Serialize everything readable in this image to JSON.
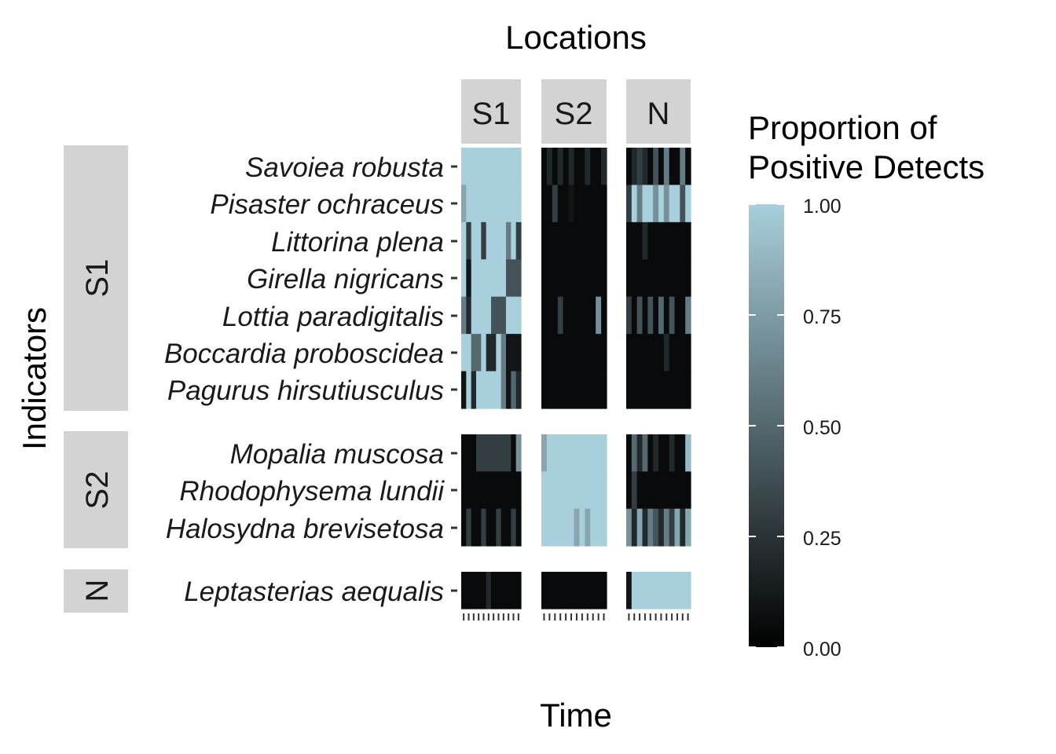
{
  "chart_data": {
    "type": "heatmap",
    "title": "Locations",
    "xlabel": "Time",
    "ylabel": "Indicators",
    "locations": [
      "S1",
      "S2",
      "N"
    ],
    "indicator_groups": [
      "S1",
      "S2",
      "N"
    ],
    "indicators": [
      {
        "group": "S1",
        "label": "Savoiea robusta"
      },
      {
        "group": "S1",
        "label": "Pisaster ochraceus"
      },
      {
        "group": "S1",
        "label": "Littorina plena"
      },
      {
        "group": "S1",
        "label": "Girella nigricans"
      },
      {
        "group": "S1",
        "label": "Lottia paradigitalis"
      },
      {
        "group": "S1",
        "label": "Boccardia proboscidea"
      },
      {
        "group": "S1",
        "label": "Pagurus hirsutiusculus"
      },
      {
        "group": "S2",
        "label": "Mopalia muscosa"
      },
      {
        "group": "S2",
        "label": "Rhodophysema lundii"
      },
      {
        "group": "S2",
        "label": "Halosydna brevisetosa"
      },
      {
        "group": "N",
        "label": "Leptasterias aequalis"
      }
    ],
    "time_points": 12,
    "values": {
      "S1": [
        [
          1,
          1,
          1,
          1,
          1,
          1,
          1,
          1,
          1,
          1,
          1,
          1
        ],
        [
          0.8,
          1,
          1,
          1,
          1,
          1,
          1,
          1,
          1,
          1,
          1,
          1
        ],
        [
          1,
          0.3,
          1,
          1,
          0.3,
          1,
          1,
          1,
          1,
          0.6,
          1,
          0.3
        ],
        [
          1,
          0.1,
          1,
          1,
          1,
          1,
          1,
          1,
          1,
          0.4,
          0.4,
          0.4
        ],
        [
          0.6,
          0.2,
          1,
          1,
          1,
          1,
          0.4,
          0.4,
          0.4,
          1,
          1,
          1
        ],
        [
          1,
          1,
          0.5,
          0.5,
          1,
          0.2,
          0.2,
          1,
          0.6,
          0.1,
          0.1,
          0.1
        ],
        [
          0.1,
          1,
          0.2,
          1,
          1,
          1,
          1,
          1,
          0.6,
          0.1,
          0.5,
          0.2
        ],
        [
          0.05,
          0.05,
          0.05,
          0.3,
          0.3,
          0.3,
          0.3,
          0.3,
          0.3,
          0.3,
          0.05,
          0.7
        ],
        [
          0.05,
          0.05,
          0.05,
          0.05,
          0.05,
          0.05,
          0.05,
          0.05,
          0.05,
          0.05,
          0.05,
          0.05
        ],
        [
          0.05,
          0.3,
          0.05,
          0.05,
          0.3,
          0.05,
          0.05,
          0.3,
          0.05,
          0.05,
          0.3,
          0.05
        ],
        [
          0.05,
          0.05,
          0.05,
          0.05,
          0.05,
          0.2,
          0.05,
          0.05,
          0.05,
          0.05,
          0.05,
          0.05
        ]
      ],
      "S2": [
        [
          0.05,
          0.2,
          0.05,
          0.2,
          0.05,
          0.2,
          0.05,
          0.05,
          0.2,
          0.05,
          0.05,
          0.2
        ],
        [
          0.05,
          0.05,
          0.3,
          0.05,
          0.05,
          0.1,
          0.05,
          0.05,
          0.05,
          0.05,
          0.05,
          0.05
        ],
        [
          0.05,
          0.05,
          0.05,
          0.05,
          0.05,
          0.05,
          0.05,
          0.05,
          0.05,
          0.05,
          0.05,
          0.05
        ],
        [
          0.05,
          0.05,
          0.05,
          0.05,
          0.05,
          0.05,
          0.05,
          0.05,
          0.05,
          0.05,
          0.05,
          0.05
        ],
        [
          0.05,
          0.05,
          0.05,
          0.3,
          0.05,
          0.05,
          0.05,
          0.05,
          0.05,
          0.05,
          0.7,
          0.05
        ],
        [
          0.05,
          0.05,
          0.05,
          0.05,
          0.05,
          0.05,
          0.05,
          0.05,
          0.05,
          0.05,
          0.05,
          0.05
        ],
        [
          0.05,
          0.05,
          0.05,
          0.05,
          0.05,
          0.05,
          0.05,
          0.05,
          0.05,
          0.05,
          0.05,
          0.05
        ],
        [
          0.8,
          1,
          1,
          1,
          1,
          1,
          1,
          1,
          1,
          1,
          1,
          1
        ],
        [
          1,
          1,
          1,
          1,
          1,
          1,
          1,
          1,
          1,
          1,
          1,
          1
        ],
        [
          1,
          1,
          1,
          1,
          1,
          1,
          0.8,
          1,
          0.8,
          1,
          1,
          1
        ],
        [
          0.05,
          0.05,
          0.05,
          0.05,
          0.05,
          0.05,
          0.05,
          0.05,
          0.05,
          0.05,
          0.05,
          0.05
        ]
      ],
      "N": [
        [
          0.05,
          0.2,
          0.3,
          0.2,
          0.05,
          0.4,
          0.05,
          0.6,
          0.05,
          0.05,
          0.6,
          0.05
        ],
        [
          0.3,
          1,
          0.6,
          1,
          1,
          0.7,
          1,
          0.7,
          1,
          1,
          0.4,
          1
        ],
        [
          0.05,
          0.05,
          0.05,
          0.2,
          0.05,
          0.05,
          0.05,
          0.05,
          0.05,
          0.05,
          0.05,
          0.05
        ],
        [
          0.05,
          0.05,
          0.05,
          0.05,
          0.05,
          0.05,
          0.05,
          0.05,
          0.05,
          0.05,
          0.05,
          0.05
        ],
        [
          0.3,
          0.05,
          0.4,
          0.05,
          0.4,
          0.05,
          0.5,
          0.05,
          0.4,
          0.05,
          0.05,
          0.6
        ],
        [
          0.05,
          0.05,
          0.05,
          0.05,
          0.05,
          0.05,
          0.05,
          0.2,
          0.05,
          0.05,
          0.05,
          0.05
        ],
        [
          0.05,
          0.05,
          0.05,
          0.05,
          0.05,
          0.05,
          0.05,
          0.05,
          0.05,
          0.05,
          0.05,
          0.05
        ],
        [
          0.05,
          0.5,
          0.2,
          0.5,
          0.05,
          0.2,
          0.05,
          0.05,
          0.2,
          0.05,
          0.05,
          0.9
        ],
        [
          0.05,
          0.3,
          0.05,
          0.05,
          0.05,
          0.05,
          0.05,
          0.05,
          0.05,
          0.05,
          0.05,
          0.05
        ],
        [
          0.7,
          0.2,
          0.8,
          0.2,
          0.6,
          0.4,
          0.2,
          0.6,
          0.3,
          0.8,
          0.2,
          0.8
        ],
        [
          0.1,
          1,
          1,
          1,
          1,
          1,
          1,
          1,
          1,
          1,
          1,
          1
        ]
      ]
    },
    "legend": {
      "title_line1": "Proportion of",
      "title_line2": "Positive Detects",
      "ticks": [
        "1.00",
        "0.75",
        "0.50",
        "0.25",
        "0.00"
      ],
      "tick_values": [
        1,
        0.75,
        0.5,
        0.25,
        0
      ],
      "color_low": "#000000",
      "color_high": "#a8cfdc"
    }
  }
}
